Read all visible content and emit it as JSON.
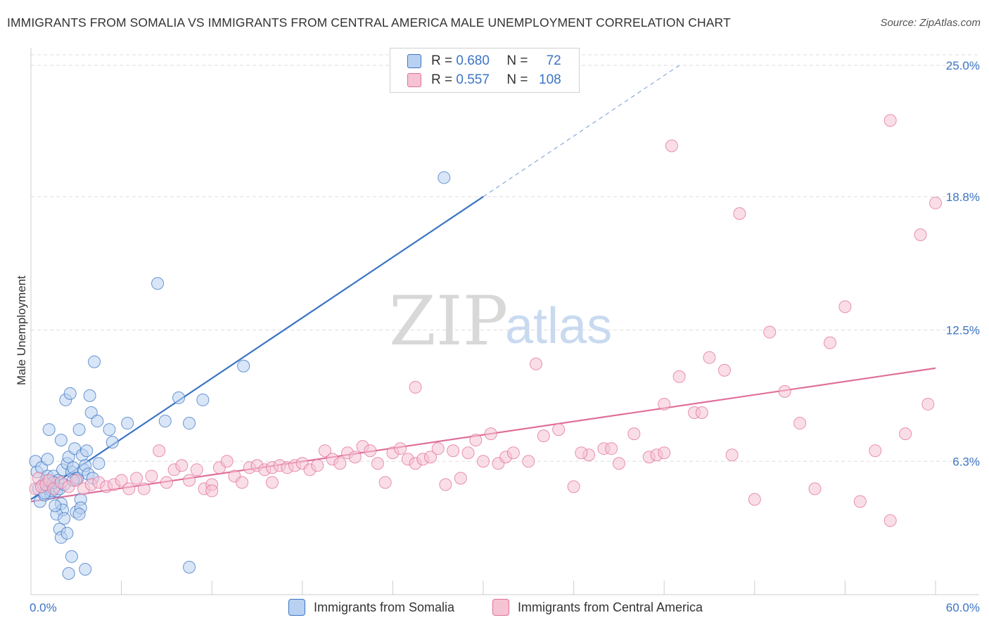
{
  "header": {
    "title": "IMMIGRANTS FROM SOMALIA VS IMMIGRANTS FROM CENTRAL AMERICA MALE UNEMPLOYMENT CORRELATION CHART",
    "source": "Source: ZipAtlas.com"
  },
  "watermark": {
    "zip": "ZIP",
    "atlas": "atlas"
  },
  "stats": {
    "row1": {
      "r_label": "R = ",
      "r_value": "0.680",
      "n_label": "N = ",
      "n_value": "72"
    },
    "row2": {
      "r_label": "R = ",
      "r_value": "0.557",
      "n_label": "N = ",
      "n_value": "108"
    }
  },
  "legend": {
    "somalia": "Immigrants from Somalia",
    "central_america": "Immigrants from Central America"
  },
  "colors": {
    "somalia": "#3b74c4",
    "somalia_fill": "#b9d1f1",
    "central_america": "#e06f9a",
    "central_america_fill": "#f6c3d3",
    "grid": "#dddddd",
    "tick": "#3b74c4"
  },
  "chart_data": {
    "type": "scatter",
    "title": "IMMIGRANTS FROM SOMALIA VS IMMIGRANTS FROM CENTRAL AMERICA MALE UNEMPLOYMENT CORRELATION CHART",
    "xlabel": "",
    "ylabel": "Male Unemployment",
    "xlim": [
      0,
      60
    ],
    "ylim": [
      0,
      25.5
    ],
    "x_tick_labels": [
      "0.0%",
      "60.0%"
    ],
    "y_ticks": [
      6.3,
      12.5,
      18.8,
      25.0
    ],
    "y_tick_labels": [
      "6.3%",
      "12.5%",
      "18.8%",
      "25.0%"
    ],
    "grid": "horizontal dashed",
    "legend_position": "bottom-center",
    "series": [
      {
        "name": "Immigrants from Somalia",
        "R": 0.68,
        "N": 72,
        "trend": {
          "x0": 0,
          "y0": 4.5,
          "x1": 30,
          "y1": 18.8,
          "dashed_to": [
            43,
            25.0
          ]
        },
        "points": [
          [
            0.3,
            6.3
          ],
          [
            0.4,
            5.8
          ],
          [
            0.5,
            5.0
          ],
          [
            0.6,
            4.4
          ],
          [
            0.7,
            6.0
          ],
          [
            0.8,
            5.2
          ],
          [
            0.9,
            4.7
          ],
          [
            1.0,
            5.4
          ],
          [
            1.1,
            5.6
          ],
          [
            1.2,
            5.0
          ],
          [
            1.3,
            4.8
          ],
          [
            1.1,
            6.4
          ],
          [
            1.2,
            7.8
          ],
          [
            1.4,
            4.9
          ],
          [
            1.5,
            5.6
          ],
          [
            1.6,
            5.1
          ],
          [
            1.7,
            4.9
          ],
          [
            1.8,
            5.4
          ],
          [
            1.9,
            5.0
          ],
          [
            2.0,
            4.3
          ],
          [
            2.0,
            7.3
          ],
          [
            2.1,
            5.9
          ],
          [
            2.2,
            5.2
          ],
          [
            2.1,
            4.0
          ],
          [
            2.3,
            9.2
          ],
          [
            2.4,
            6.2
          ],
          [
            2.5,
            6.5
          ],
          [
            2.6,
            9.5
          ],
          [
            2.7,
            5.8
          ],
          [
            2.8,
            6.0
          ],
          [
            2.9,
            6.9
          ],
          [
            3.0,
            5.5
          ],
          [
            3.1,
            5.5
          ],
          [
            3.2,
            7.8
          ],
          [
            3.3,
            4.5
          ],
          [
            3.4,
            6.6
          ],
          [
            3.5,
            5.9
          ],
          [
            3.6,
            6.1
          ],
          [
            3.7,
            6.8
          ],
          [
            3.8,
            5.7
          ],
          [
            3.9,
            9.4
          ],
          [
            4.0,
            8.6
          ],
          [
            4.1,
            5.5
          ],
          [
            4.2,
            11.0
          ],
          [
            4.4,
            8.2
          ],
          [
            4.5,
            6.2
          ],
          [
            5.2,
            7.8
          ],
          [
            5.4,
            7.2
          ],
          [
            6.4,
            8.1
          ],
          [
            8.4,
            14.7
          ],
          [
            8.9,
            8.2
          ],
          [
            9.8,
            9.3
          ],
          [
            10.5,
            8.1
          ],
          [
            11.4,
            9.2
          ],
          [
            14.1,
            10.8
          ],
          [
            27.4,
            19.7
          ],
          [
            1.7,
            3.8
          ],
          [
            1.9,
            3.1
          ],
          [
            2.0,
            2.7
          ],
          [
            2.4,
            2.9
          ],
          [
            2.5,
            1.0
          ],
          [
            2.7,
            1.8
          ],
          [
            3.0,
            3.9
          ],
          [
            3.3,
            4.1
          ],
          [
            3.6,
            1.2
          ],
          [
            10.5,
            1.3
          ],
          [
            1.6,
            4.2
          ],
          [
            2.2,
            3.6
          ],
          [
            3.2,
            3.8
          ],
          [
            0.9,
            4.8
          ],
          [
            1.5,
            5.3
          ],
          [
            2.8,
            5.4
          ]
        ]
      },
      {
        "name": "Immigrants from Central America",
        "R": 0.557,
        "N": 108,
        "trend": {
          "x0": 0,
          "y0": 4.4,
          "x1": 60,
          "y1": 10.7
        },
        "points": [
          [
            0.3,
            5.0
          ],
          [
            0.5,
            5.5
          ],
          [
            0.7,
            5.1
          ],
          [
            1.0,
            5.2
          ],
          [
            1.2,
            5.4
          ],
          [
            1.5,
            5.0
          ],
          [
            2.0,
            5.3
          ],
          [
            2.5,
            5.1
          ],
          [
            3.0,
            5.4
          ],
          [
            3.5,
            5.0
          ],
          [
            4.0,
            5.2
          ],
          [
            4.5,
            5.3
          ],
          [
            5.0,
            5.1
          ],
          [
            5.5,
            5.2
          ],
          [
            6.0,
            5.4
          ],
          [
            6.5,
            5.0
          ],
          [
            7.0,
            5.5
          ],
          [
            7.5,
            5.0
          ],
          [
            8.0,
            5.6
          ],
          [
            8.5,
            6.8
          ],
          [
            9.0,
            5.3
          ],
          [
            9.5,
            5.9
          ],
          [
            10.0,
            6.1
          ],
          [
            10.5,
            5.4
          ],
          [
            11.0,
            5.9
          ],
          [
            11.5,
            5.0
          ],
          [
            12.0,
            5.2
          ],
          [
            12.5,
            6.0
          ],
          [
            13.0,
            6.3
          ],
          [
            13.5,
            5.6
          ],
          [
            14.0,
            5.3
          ],
          [
            14.5,
            6.0
          ],
          [
            15.0,
            6.1
          ],
          [
            15.5,
            5.9
          ],
          [
            16.0,
            6.0
          ],
          [
            16.5,
            6.1
          ],
          [
            17.0,
            6.0
          ],
          [
            17.5,
            6.1
          ],
          [
            18.0,
            6.2
          ],
          [
            18.5,
            5.9
          ],
          [
            19.0,
            6.1
          ],
          [
            19.5,
            6.8
          ],
          [
            20.0,
            6.4
          ],
          [
            20.5,
            6.2
          ],
          [
            21.0,
            6.7
          ],
          [
            21.5,
            6.5
          ],
          [
            22.0,
            7.0
          ],
          [
            22.5,
            6.8
          ],
          [
            23.0,
            6.2
          ],
          [
            23.5,
            5.3
          ],
          [
            24.0,
            6.7
          ],
          [
            24.5,
            6.9
          ],
          [
            25.0,
            6.4
          ],
          [
            25.5,
            6.2
          ],
          [
            26.0,
            6.4
          ],
          [
            26.5,
            6.5
          ],
          [
            27.0,
            6.9
          ],
          [
            27.5,
            5.2
          ],
          [
            28.0,
            6.8
          ],
          [
            28.5,
            5.5
          ],
          [
            29.0,
            6.7
          ],
          [
            29.5,
            7.3
          ],
          [
            30.0,
            6.3
          ],
          [
            30.5,
            7.6
          ],
          [
            31.0,
            6.2
          ],
          [
            31.5,
            6.5
          ],
          [
            32.0,
            6.7
          ],
          [
            33.0,
            6.3
          ],
          [
            34.0,
            7.5
          ],
          [
            35.0,
            7.8
          ],
          [
            36.0,
            5.1
          ],
          [
            37.0,
            6.6
          ],
          [
            38.0,
            6.9
          ],
          [
            39.0,
            6.2
          ],
          [
            40.0,
            7.6
          ],
          [
            41.0,
            6.5
          ],
          [
            42.0,
            9.0
          ],
          [
            43.0,
            10.3
          ],
          [
            44.0,
            8.6
          ],
          [
            45.0,
            11.2
          ],
          [
            46.0,
            10.6
          ],
          [
            47.0,
            18.0
          ],
          [
            48.0,
            4.5
          ],
          [
            49.0,
            12.4
          ],
          [
            50.0,
            9.6
          ],
          [
            51.0,
            8.1
          ],
          [
            52.0,
            5.0
          ],
          [
            53.0,
            11.9
          ],
          [
            54.0,
            13.6
          ],
          [
            55.0,
            4.4
          ],
          [
            56.0,
            6.8
          ],
          [
            57.0,
            3.5
          ],
          [
            58.0,
            7.6
          ],
          [
            59.0,
            17.0
          ],
          [
            60.0,
            18.5
          ],
          [
            44.5,
            8.6
          ],
          [
            46.5,
            6.6
          ],
          [
            33.5,
            10.9
          ],
          [
            25.5,
            9.8
          ],
          [
            38.5,
            6.9
          ],
          [
            41.5,
            6.6
          ],
          [
            42.5,
            21.2
          ],
          [
            57.0,
            22.4
          ],
          [
            59.5,
            9.0
          ],
          [
            42.0,
            6.7
          ],
          [
            16.0,
            5.3
          ],
          [
            12.0,
            4.9
          ],
          [
            36.5,
            6.7
          ]
        ]
      }
    ]
  }
}
